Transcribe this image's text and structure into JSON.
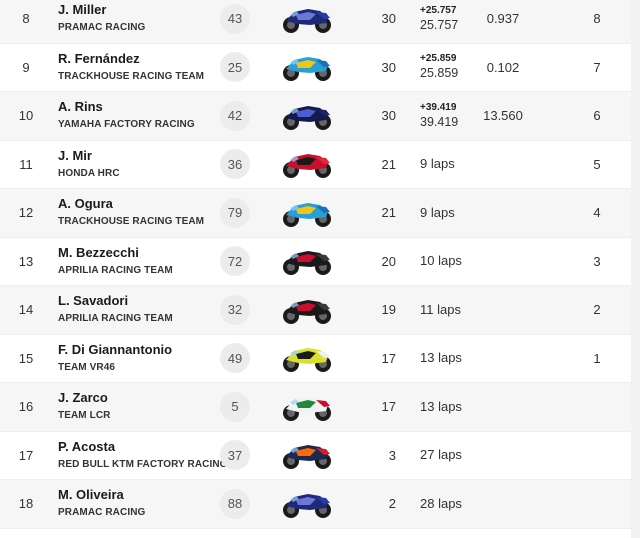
{
  "results": {
    "rows": [
      {
        "pos": "8",
        "name": "J. Miller",
        "team": "PRAMAC RACING",
        "number": "43",
        "bike": "yamaha-pramac",
        "laps": "30",
        "gap_small": "+25.757",
        "gap": "25.757",
        "interval": "0.937",
        "points": "8"
      },
      {
        "pos": "9",
        "name": "R. Fernández",
        "team": "TRACKHOUSE RACING TEAM",
        "number": "25",
        "bike": "aprilia-trackhouse",
        "laps": "30",
        "gap_small": "+25.859",
        "gap": "25.859",
        "interval": "0.102",
        "points": "7"
      },
      {
        "pos": "10",
        "name": "A. Rins",
        "team": "YAMAHA FACTORY RACING",
        "number": "42",
        "bike": "yamaha-factory",
        "laps": "30",
        "gap_small": "+39.419",
        "gap": "39.419",
        "interval": "13.560",
        "points": "6"
      },
      {
        "pos": "11",
        "name": "J. Mir",
        "team": "HONDA HRC",
        "number": "36",
        "bike": "honda-hrc",
        "laps": "21",
        "gap_small": "",
        "gap": "9 laps",
        "interval": "",
        "points": "5"
      },
      {
        "pos": "12",
        "name": "A. Ogura",
        "team": "TRACKHOUSE RACING TEAM",
        "number": "79",
        "bike": "aprilia-trackhouse",
        "laps": "21",
        "gap_small": "",
        "gap": "9 laps",
        "interval": "",
        "points": "4"
      },
      {
        "pos": "13",
        "name": "M. Bezzecchi",
        "team": "APRILIA RACING TEAM",
        "number": "72",
        "bike": "aprilia-factory",
        "laps": "20",
        "gap_small": "",
        "gap": "10 laps",
        "interval": "",
        "points": "3"
      },
      {
        "pos": "14",
        "name": "L. Savadori",
        "team": "APRILIA RACING TEAM",
        "number": "32",
        "bike": "aprilia-factory",
        "laps": "19",
        "gap_small": "",
        "gap": "11 laps",
        "interval": "",
        "points": "2"
      },
      {
        "pos": "15",
        "name": "F. Di Giannantonio",
        "team": "TEAM VR46",
        "number": "49",
        "bike": "ducati-vr46",
        "laps": "17",
        "gap_small": "",
        "gap": "13 laps",
        "interval": "",
        "points": "1"
      },
      {
        "pos": "16",
        "name": "J. Zarco",
        "team": "TEAM LCR",
        "number": "5",
        "bike": "honda-lcr",
        "laps": "17",
        "gap_small": "",
        "gap": "13 laps",
        "interval": "",
        "points": ""
      },
      {
        "pos": "17",
        "name": "P. Acosta",
        "team": "RED BULL KTM FACTORY RACING",
        "number": "37",
        "bike": "ktm-factory",
        "laps": "3",
        "gap_small": "",
        "gap": "27 laps",
        "interval": "",
        "points": ""
      },
      {
        "pos": "18",
        "name": "M. Oliveira",
        "team": "PRAMAC RACING",
        "number": "88",
        "bike": "yamaha-pramac",
        "laps": "2",
        "gap_small": "",
        "gap": "28 laps",
        "interval": "",
        "points": ""
      }
    ]
  },
  "bike_colors": {
    "yamaha-pramac": {
      "body": "#1e2a78",
      "accent": "#6a78d8",
      "tail": "#2b3aa6"
    },
    "aprilia-trackhouse": {
      "body": "#2a9fd6",
      "accent": "#f0c419",
      "tail": "#1c6fb3"
    },
    "yamaha-factory": {
      "body": "#141a4d",
      "accent": "#4a5fd0",
      "tail": "#1a2366"
    },
    "honda-hrc": {
      "body": "#c8102e",
      "accent": "#1a1a1a",
      "tail": "#e02a3a"
    },
    "aprilia-factory": {
      "body": "#1a1a1a",
      "accent": "#c8102e",
      "tail": "#3a3a3a"
    },
    "ducati-vr46": {
      "body": "#d8e22a",
      "accent": "#1a1a1a",
      "tail": "#f0f0f0"
    },
    "honda-lcr": {
      "body": "#f2f2f2",
      "accent": "#1f8a3a",
      "tail": "#c8102e"
    },
    "ktm-factory": {
      "body": "#1b2a55",
      "accent": "#ff6a00",
      "tail": "#d0202a"
    }
  }
}
